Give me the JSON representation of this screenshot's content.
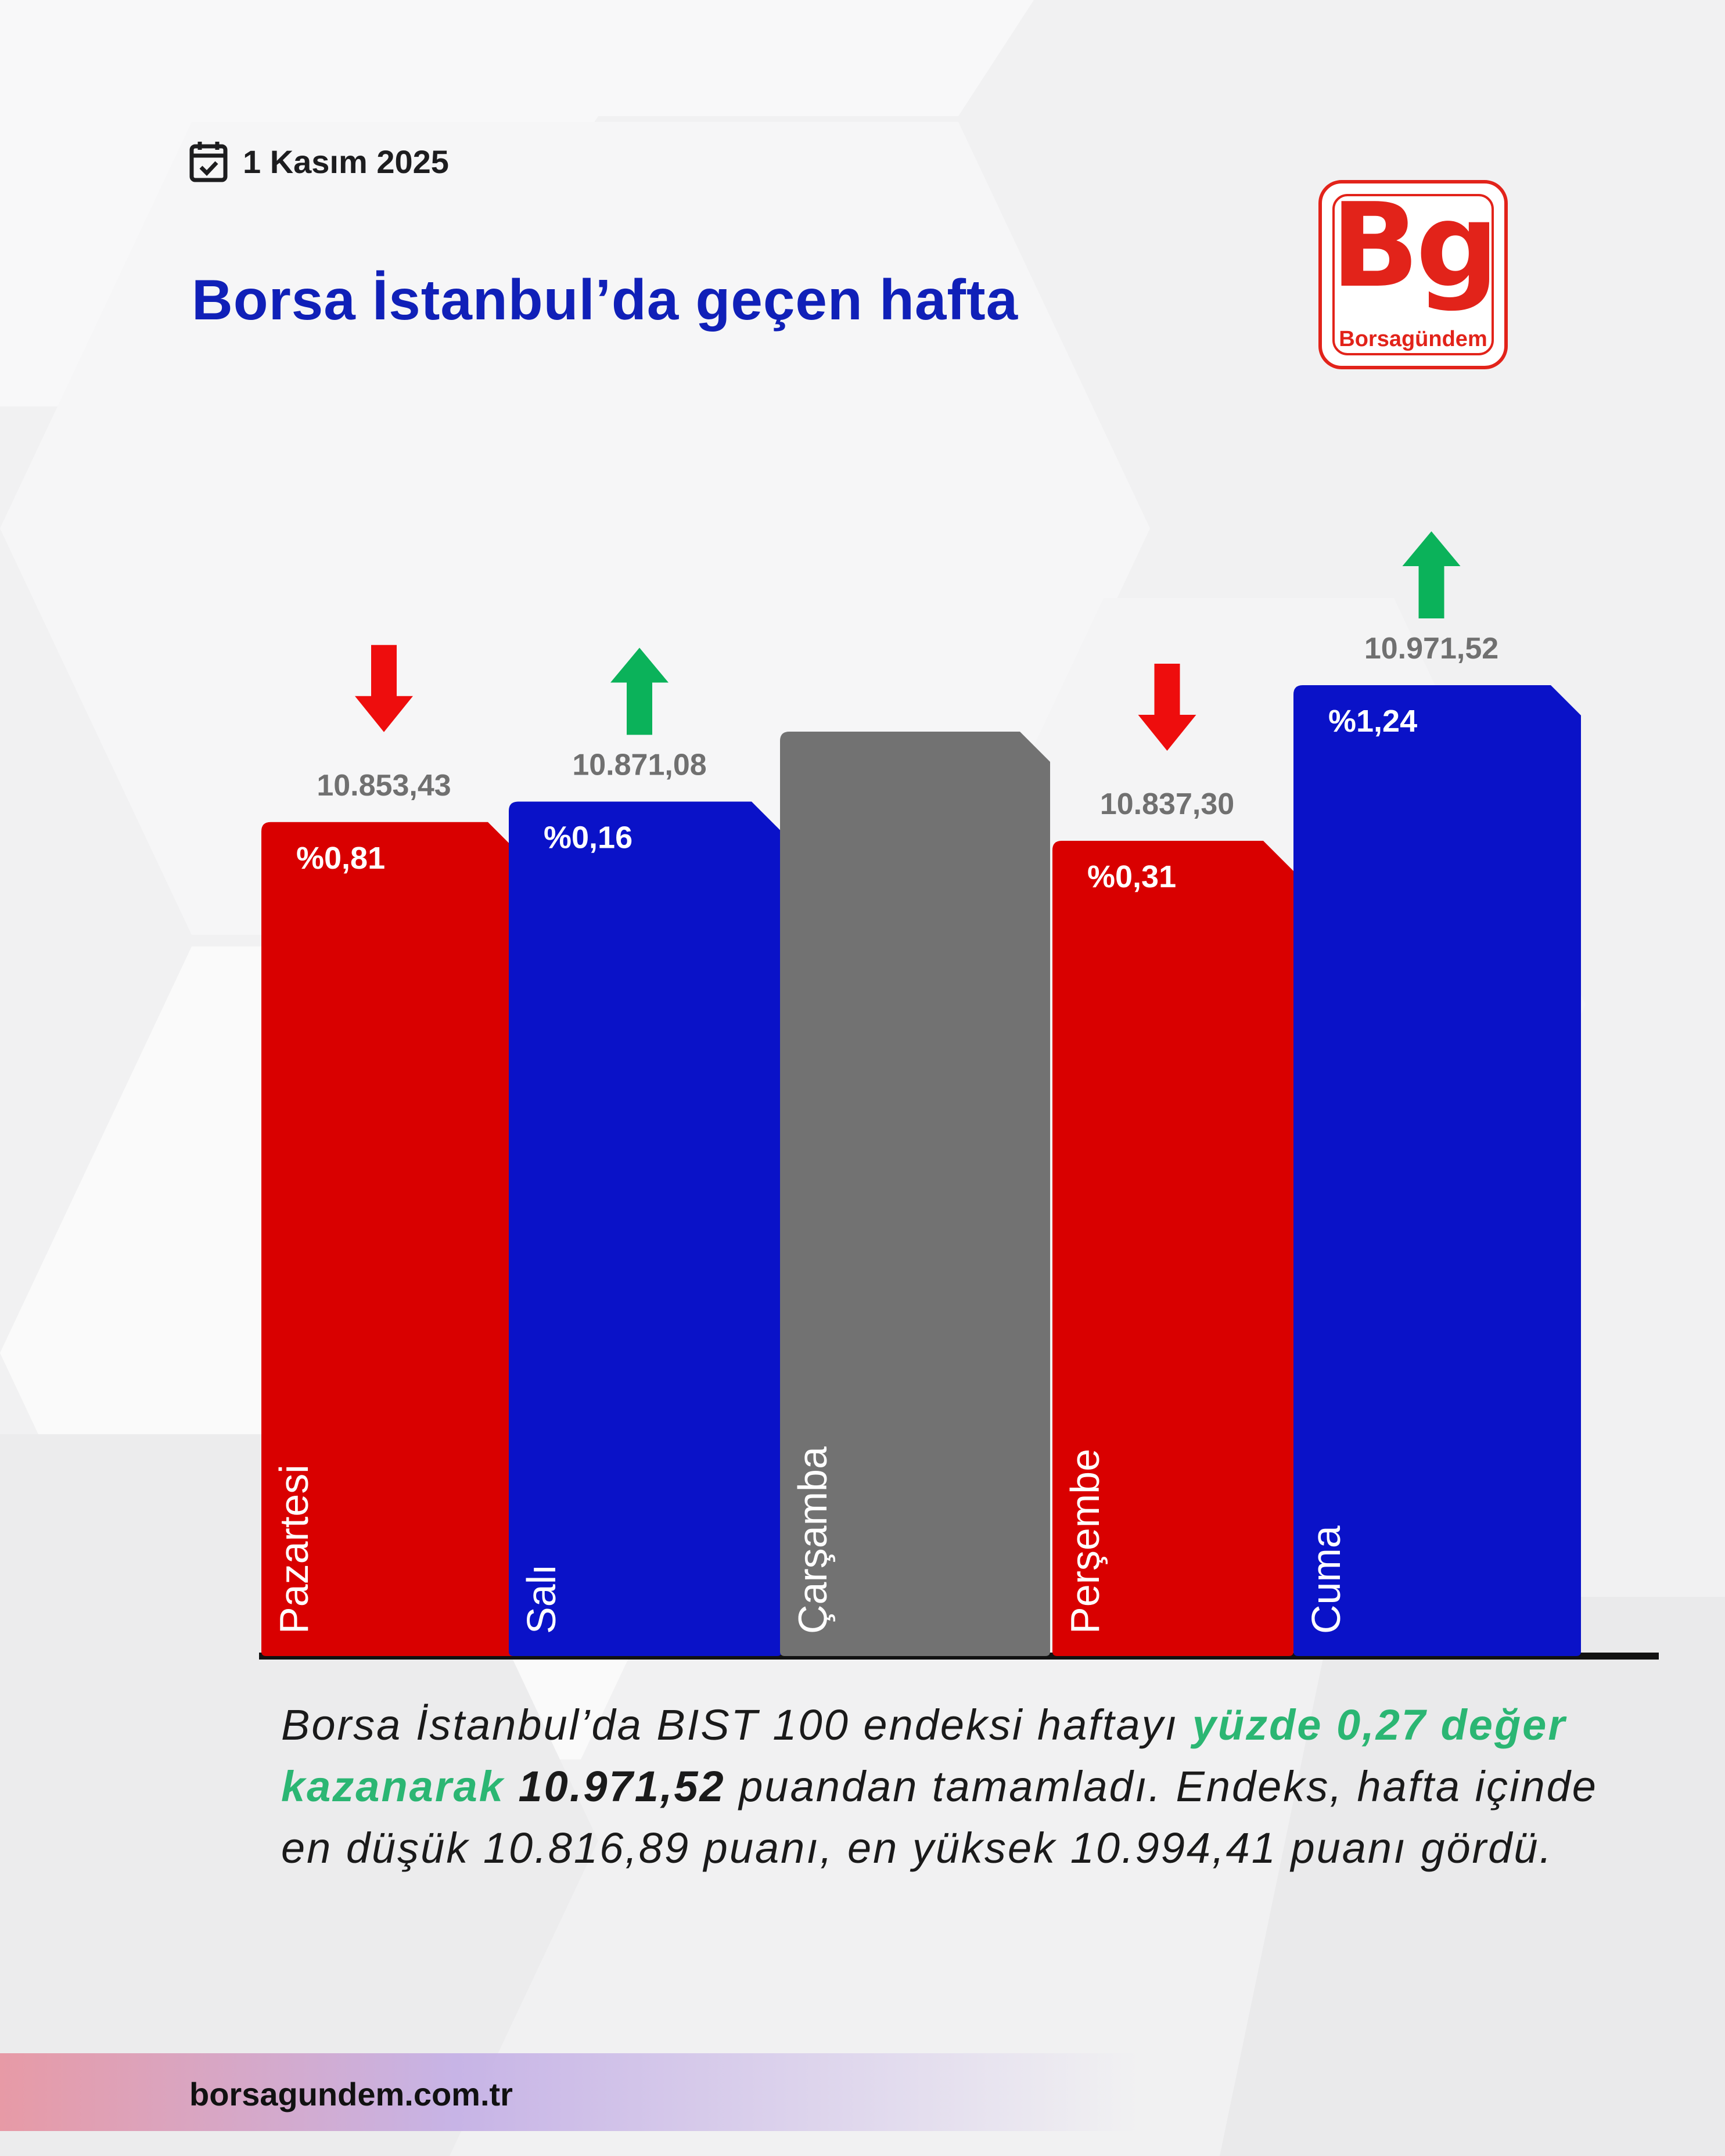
{
  "header": {
    "date": "1 Kasım 2025",
    "title": "Borsa İstanbul’da geçen hafta",
    "icons": {
      "date": "calendar-check-icon",
      "up": "arrow-up-icon",
      "down": "arrow-down-icon"
    }
  },
  "logo": {
    "mark": "Bg",
    "name": "Borsagündem"
  },
  "chart_data": {
    "type": "bar",
    "categories": [
      "Pazartesi",
      "Salı",
      "Çarşamba",
      "Perşembe",
      "Cuma"
    ],
    "values": [
      10853.43,
      10871.08,
      null,
      10837.3,
      10971.52
    ],
    "value_labels": [
      "10.853,43",
      "10.871,08",
      "",
      "10.837,30",
      "10.971,52"
    ],
    "change_labels": [
      "%0,81",
      "%0,16",
      "",
      "%0,31",
      "%1,24"
    ],
    "direction": [
      "down",
      "up",
      "none",
      "down",
      "up"
    ],
    "colors": {
      "down": "#d90000",
      "up": "#0a12c8",
      "none": "#727272",
      "arrow_up": "#0bb25a",
      "arrow_down": "#ee0d0d",
      "value_label": "#707070"
    },
    "title": "",
    "xlabel": "",
    "ylabel": "",
    "grid": false,
    "legend": "none"
  },
  "summary": {
    "part1": "Borsa İstanbul’da BIST 100 endeksi haftayı ",
    "highlight": "yüzde 0,27 değer kazanarak",
    "part2": " ",
    "bold_value": "10.971,52",
    "part3": " puandan tamamladı. Endeks, hafta içinde en düşük 10.816,89 puanı, en yüksek 10.994,41 puanı gördü."
  },
  "footer": {
    "url": "borsagundem.com.tr"
  },
  "theme": {
    "title_color": "#1020b8",
    "logo_red": "#e2231a",
    "highlight_green": "#2bb673"
  }
}
